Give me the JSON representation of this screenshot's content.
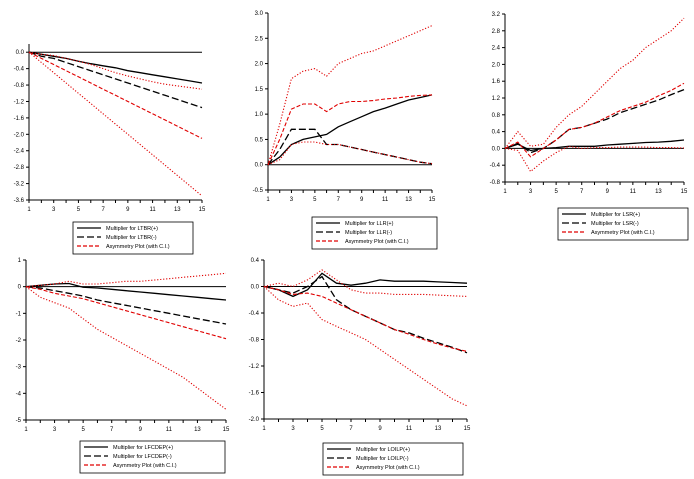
{
  "chart_data": [
    {
      "type": "line",
      "x": [
        1,
        2,
        3,
        4,
        5,
        6,
        7,
        8,
        9,
        10,
        11,
        12,
        13,
        14,
        15
      ],
      "xticks": [
        "1",
        "3",
        "5",
        "7",
        "9",
        "11",
        "13",
        "15"
      ],
      "ylim": [
        -3.6,
        0.2
      ],
      "yticks": [
        "0.0",
        "-0.4",
        "-0.8",
        "-1.2",
        "-1.6",
        "-2.0",
        "-2.4",
        "-2.8",
        "-3.2",
        "-3.6"
      ],
      "series": [
        {
          "name": "Multiplier for LTBR(+)",
          "style": "solid",
          "color": "#000000",
          "values": [
            0,
            -0.05,
            -0.1,
            -0.15,
            -0.22,
            -0.28,
            -0.33,
            -0.38,
            -0.45,
            -0.5,
            -0.55,
            -0.6,
            -0.65,
            -0.7,
            -0.75
          ]
        },
        {
          "name": "Multiplier for LTBR(-)",
          "style": "longdash",
          "color": "#000000",
          "values": [
            0,
            -0.1,
            -0.15,
            -0.25,
            -0.35,
            -0.45,
            -0.55,
            -0.65,
            -0.75,
            -0.85,
            -0.95,
            -1.05,
            -1.15,
            -1.25,
            -1.35
          ]
        },
        {
          "name": "Asymmetry Plot (with C.I.)",
          "style": "dash",
          "color": "#e00000",
          "values": [
            0,
            -0.15,
            -0.3,
            -0.45,
            -0.6,
            -0.75,
            -0.9,
            -1.05,
            -1.2,
            -1.35,
            -1.5,
            -1.65,
            -1.8,
            -1.95,
            -2.1
          ]
        },
        {
          "name": "",
          "style": "dot",
          "color": "#e00000",
          "values": [
            0,
            -0.05,
            -0.08,
            -0.15,
            -0.22,
            -0.3,
            -0.4,
            -0.5,
            -0.58,
            -0.65,
            -0.72,
            -0.78,
            -0.82,
            -0.86,
            -0.9
          ]
        },
        {
          "name": "",
          "style": "dot",
          "color": "#e00000",
          "values": [
            0,
            -0.25,
            -0.5,
            -0.75,
            -1.0,
            -1.25,
            -1.5,
            -1.75,
            -2.0,
            -2.25,
            -2.5,
            -2.75,
            -3.0,
            -3.25,
            -3.5
          ]
        }
      ]
    },
    {
      "type": "line",
      "x": [
        1,
        2,
        3,
        4,
        5,
        6,
        7,
        8,
        9,
        10,
        11,
        12,
        13,
        14,
        15
      ],
      "xticks": [
        "1",
        "3",
        "5",
        "7",
        "9",
        "11",
        "13",
        "15"
      ],
      "ylim": [
        -0.5,
        3.0
      ],
      "yticks": [
        "3.0",
        "2.5",
        "2.0",
        "1.5",
        "1.0",
        "0.5",
        "0.0",
        "-0.5"
      ],
      "series": [
        {
          "name": "Multiplier for LLR(+)",
          "style": "solid",
          "color": "#000000",
          "values": [
            0,
            0.15,
            0.4,
            0.5,
            0.55,
            0.6,
            0.75,
            0.85,
            0.95,
            1.05,
            1.12,
            1.2,
            1.28,
            1.33,
            1.38
          ]
        },
        {
          "name": "Multiplier for LLR(-)",
          "style": "longdash",
          "color": "#000000",
          "values": [
            0,
            0.3,
            0.7,
            0.7,
            0.7,
            0.4,
            0.4,
            0.35,
            0.3,
            0.25,
            0.2,
            0.15,
            0.1,
            0.05,
            0.02
          ]
        },
        {
          "name": "Asymmetry Plot (with C.I.)",
          "style": "dash",
          "color": "#e00000",
          "values": [
            0,
            0.5,
            1.1,
            1.2,
            1.2,
            1.05,
            1.2,
            1.25,
            1.25,
            1.27,
            1.3,
            1.32,
            1.35,
            1.37,
            1.38
          ]
        },
        {
          "name": "",
          "style": "dot",
          "color": "#e00000",
          "values": [
            0,
            0.8,
            1.7,
            1.85,
            1.9,
            1.75,
            2.0,
            2.1,
            2.2,
            2.25,
            2.35,
            2.45,
            2.55,
            2.65,
            2.75
          ]
        },
        {
          "name": "",
          "style": "dot",
          "color": "#e00000",
          "values": [
            0,
            0.1,
            0.4,
            0.45,
            0.45,
            0.4,
            0.4,
            0.35,
            0.3,
            0.25,
            0.2,
            0.15,
            0.1,
            0.05,
            0.02
          ]
        }
      ]
    },
    {
      "type": "line",
      "x": [
        1,
        2,
        3,
        4,
        5,
        6,
        7,
        8,
        9,
        10,
        11,
        12,
        13,
        14,
        15
      ],
      "xticks": [
        "1",
        "3",
        "5",
        "7",
        "9",
        "11",
        "13",
        "15"
      ],
      "ylim": [
        -0.8,
        3.2
      ],
      "yticks": [
        "3.2",
        "2.8",
        "2.4",
        "2.0",
        "1.6",
        "1.2",
        "0.8",
        "0.4",
        "0.0",
        "-0.4",
        "-0.8"
      ],
      "series": [
        {
          "name": "Multiplier for LSR(+)",
          "style": "solid",
          "color": "#000000",
          "values": [
            0,
            0.1,
            -0.05,
            0,
            0.02,
            0.05,
            0.05,
            0.05,
            0.08,
            0.1,
            0.12,
            0.14,
            0.15,
            0.17,
            0.2
          ]
        },
        {
          "name": "Multiplier for LSR(-)",
          "style": "longdash",
          "color": "#000000",
          "values": [
            0,
            0.12,
            -0.1,
            0,
            0.2,
            0.45,
            0.5,
            0.6,
            0.7,
            0.85,
            0.95,
            1.05,
            1.15,
            1.28,
            1.4
          ]
        },
        {
          "name": "Asymmetry Plot (with C.I.)",
          "style": "dash",
          "color": "#e00000",
          "values": [
            0,
            0.15,
            -0.2,
            0,
            0.2,
            0.45,
            0.5,
            0.6,
            0.75,
            0.9,
            1.0,
            1.1,
            1.25,
            1.38,
            1.55
          ]
        },
        {
          "name": "",
          "style": "dot",
          "color": "#e00000",
          "values": [
            0,
            0.4,
            0.05,
            0.1,
            0.5,
            0.8,
            1.0,
            1.3,
            1.6,
            1.9,
            2.1,
            2.4,
            2.6,
            2.8,
            3.1
          ]
        },
        {
          "name": "",
          "style": "dot",
          "color": "#e00000",
          "values": [
            0,
            -0.05,
            -0.55,
            -0.3,
            -0.1,
            0.05,
            0,
            0.02,
            0.02,
            0.03,
            0.03,
            0.03,
            0.02,
            0.02,
            0.01
          ]
        }
      ]
    },
    {
      "type": "line",
      "x": [
        1,
        2,
        3,
        4,
        5,
        6,
        7,
        8,
        9,
        10,
        11,
        12,
        13,
        14,
        15
      ],
      "xticks": [
        "1",
        "3",
        "5",
        "7",
        "9",
        "11",
        "13",
        "15"
      ],
      "ylim": [
        -5,
        1
      ],
      "yticks": [
        "1",
        "0",
        "-1",
        "-2",
        "-3",
        "-4",
        "-5"
      ],
      "series": [
        {
          "name": "Multiplier for LFCDEP(+)",
          "style": "solid",
          "color": "#000000",
          "values": [
            0,
            0.05,
            0.1,
            0.12,
            -0.02,
            -0.05,
            -0.1,
            -0.15,
            -0.2,
            -0.25,
            -0.3,
            -0.35,
            -0.4,
            -0.45,
            -0.5
          ]
        },
        {
          "name": "Multiplier for LFCDEP(-)",
          "style": "longdash",
          "color": "#000000",
          "values": [
            0,
            -0.05,
            -0.15,
            -0.25,
            -0.35,
            -0.5,
            -0.6,
            -0.7,
            -0.8,
            -0.9,
            -1.0,
            -1.1,
            -1.2,
            -1.3,
            -1.4
          ]
        },
        {
          "name": "Asymmetry Plot (with C.I.)",
          "style": "dash",
          "color": "#e00000",
          "values": [
            0,
            -0.1,
            -0.25,
            -0.35,
            -0.45,
            -0.6,
            -0.75,
            -0.9,
            -1.05,
            -1.2,
            -1.35,
            -1.5,
            -1.65,
            -1.8,
            -1.95
          ]
        },
        {
          "name": "",
          "style": "dot",
          "color": "#e00000",
          "values": [
            0,
            0.05,
            0.1,
            0.2,
            0.1,
            0.1,
            0.15,
            0.2,
            0.2,
            0.25,
            0.3,
            0.35,
            0.4,
            0.45,
            0.5
          ]
        },
        {
          "name": "",
          "style": "dot",
          "color": "#e00000",
          "values": [
            0,
            -0.4,
            -0.6,
            -0.8,
            -1.2,
            -1.6,
            -1.9,
            -2.2,
            -2.5,
            -2.8,
            -3.1,
            -3.4,
            -3.8,
            -4.2,
            -4.6
          ]
        }
      ]
    },
    {
      "type": "line",
      "x": [
        1,
        2,
        3,
        4,
        5,
        6,
        7,
        8,
        9,
        10,
        11,
        12,
        13,
        14,
        15
      ],
      "xticks": [
        "1",
        "3",
        "5",
        "7",
        "9",
        "11",
        "13",
        "15"
      ],
      "ylim": [
        -2.0,
        0.4
      ],
      "yticks": [
        "0.4",
        "0.0",
        "-0.4",
        "-0.8",
        "-1.2",
        "-1.6",
        "-2.0"
      ],
      "series": [
        {
          "name": "Multiplier for LOILP(+)",
          "style": "solid",
          "color": "#000000",
          "values": [
            0,
            -0.05,
            -0.15,
            -0.05,
            0.2,
            0.05,
            0.02,
            0.05,
            0.1,
            0.08,
            0.08,
            0.08,
            0.07,
            0.06,
            0.05
          ]
        },
        {
          "name": "Multiplier for LOILP(-)",
          "style": "longdash",
          "color": "#000000",
          "values": [
            0,
            -0.05,
            -0.1,
            0,
            0.15,
            -0.2,
            -0.35,
            -0.45,
            -0.55,
            -0.65,
            -0.7,
            -0.78,
            -0.85,
            -0.92,
            -1.0
          ]
        },
        {
          "name": "Asymmetry Plot (with C.I.)",
          "style": "dash",
          "color": "#e00000",
          "values": [
            0,
            -0.05,
            -0.12,
            -0.1,
            -0.15,
            -0.25,
            -0.35,
            -0.45,
            -0.55,
            -0.65,
            -0.72,
            -0.8,
            -0.87,
            -0.93,
            -0.98
          ]
        },
        {
          "name": "",
          "style": "dot",
          "color": "#e00000",
          "values": [
            0,
            0.05,
            0,
            0.1,
            0.25,
            0.1,
            -0.05,
            -0.1,
            -0.1,
            -0.12,
            -0.12,
            -0.12,
            -0.13,
            -0.14,
            -0.15
          ]
        },
        {
          "name": "",
          "style": "dot",
          "color": "#e00000",
          "values": [
            0,
            -0.2,
            -0.3,
            -0.25,
            -0.5,
            -0.6,
            -0.7,
            -0.8,
            -0.95,
            -1.1,
            -1.25,
            -1.4,
            -1.55,
            -1.7,
            -1.8
          ]
        }
      ]
    }
  ]
}
